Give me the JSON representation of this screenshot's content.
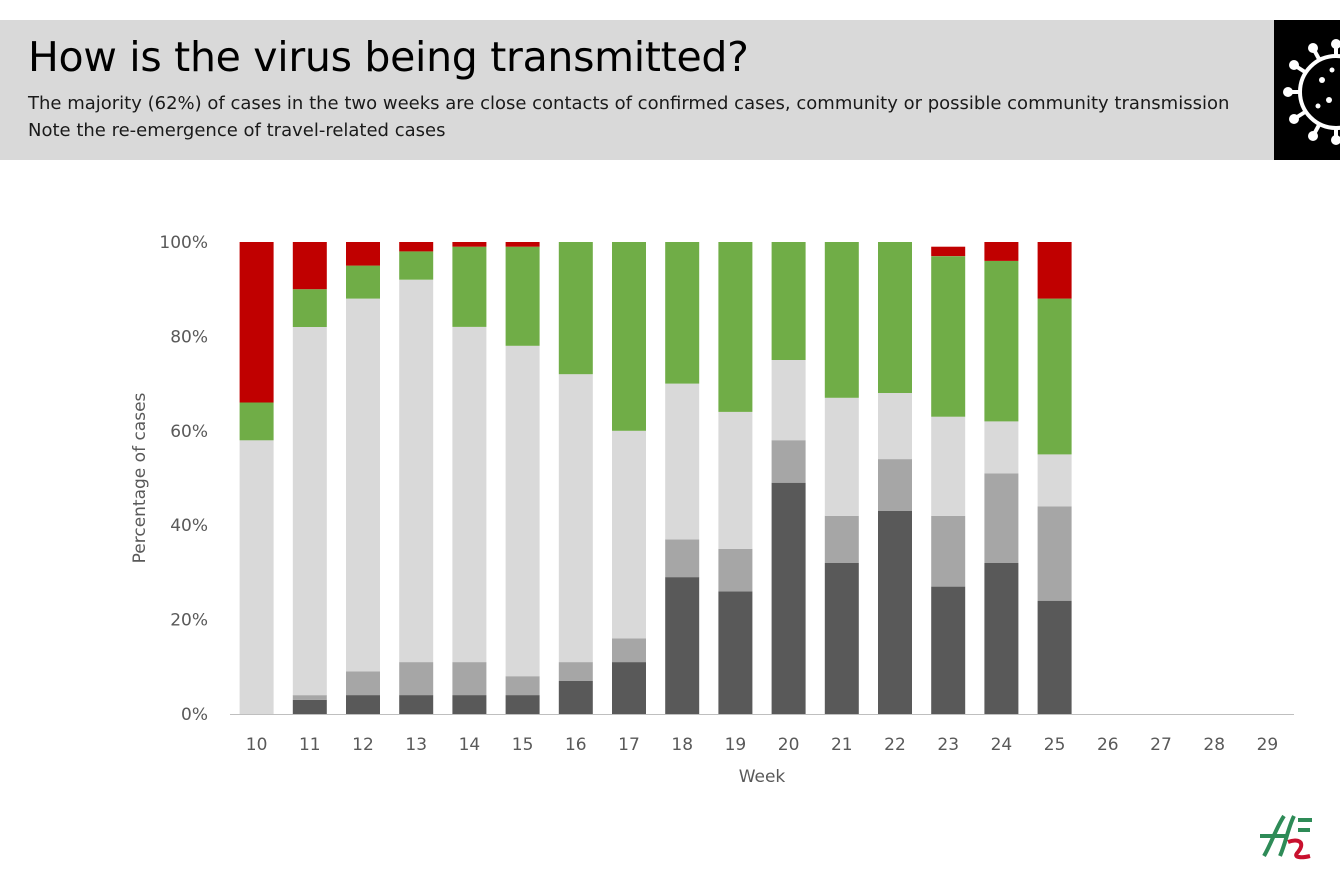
{
  "header": {
    "title": "How is the virus being transmitted?",
    "subtitle_1": "The majority (62%) of cases in the two weeks are close contacts of confirmed cases, community or possible community transmission",
    "subtitle_2": "Note the re-emergence of travel-related cases",
    "icon": "virus-icon"
  },
  "logo": {
    "icon": "hse-logo",
    "colors": [
      "#2e8b57",
      "#c8102e"
    ]
  },
  "chart_data": {
    "type": "bar",
    "stacked": true,
    "categories": [
      "10",
      "11",
      "12",
      "13",
      "14",
      "15",
      "16",
      "17",
      "18",
      "19",
      "20",
      "21",
      "22",
      "23",
      "24",
      "25",
      "26",
      "27",
      "28",
      "29"
    ],
    "xlabel": "Week",
    "ylabel": "Percentage of cases",
    "ylim": [
      0,
      100
    ],
    "yticks": [
      "0%",
      "20%",
      "40%",
      "60%",
      "80%",
      "100%"
    ],
    "grid": false,
    "legend": "none",
    "series": [
      {
        "color": "#595959",
        "values": [
          0,
          3,
          4,
          4,
          4,
          4,
          7,
          11,
          29,
          26,
          49,
          32,
          43,
          27,
          32,
          24,
          null,
          null,
          null,
          null
        ]
      },
      {
        "color": "#a6a6a6",
        "values": [
          0,
          1,
          5,
          7,
          7,
          4,
          4,
          5,
          8,
          9,
          9,
          10,
          11,
          15,
          19,
          20,
          null,
          null,
          null,
          null
        ]
      },
      {
        "color": "#d9d9d9",
        "values": [
          58,
          78,
          79,
          81,
          71,
          70,
          61,
          44,
          33,
          29,
          17,
          25,
          14,
          21,
          11,
          11,
          null,
          null,
          null,
          null
        ]
      },
      {
        "color": "#70ad47",
        "values": [
          8,
          8,
          7,
          6,
          17,
          21,
          28,
          40,
          30,
          36,
          25,
          33,
          32,
          34,
          34,
          33,
          null,
          null,
          null,
          null
        ]
      },
      {
        "color": "#c00000",
        "values": [
          34,
          10,
          5,
          2,
          1,
          1,
          0,
          0,
          0,
          0,
          0,
          0,
          0,
          2,
          4,
          12,
          null,
          null,
          null,
          null
        ]
      }
    ]
  }
}
